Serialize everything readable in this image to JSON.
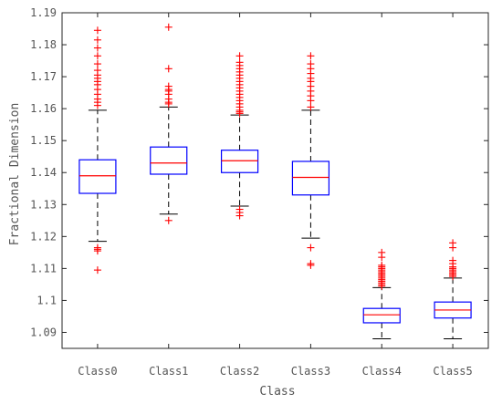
{
  "chart_data": {
    "type": "box",
    "title": "",
    "xlabel": "Class",
    "ylabel": "Fractional Dimension",
    "categories": [
      "Class0",
      "Class1",
      "Class2",
      "Class3",
      "Class4",
      "Class5"
    ],
    "ylim": [
      1.085,
      1.19
    ],
    "yticks": [
      1.09,
      1.1,
      1.11,
      1.12,
      1.13,
      1.14,
      1.15,
      1.16,
      1.17,
      1.18,
      1.19
    ],
    "ytick_labels": [
      "1.09",
      "1.1",
      "1.11",
      "1.12",
      "1.13",
      "1.14",
      "1.15",
      "1.16",
      "1.17",
      "1.18",
      "1.19"
    ],
    "grid": false,
    "colors": {
      "box": "#0000ff",
      "median": "#ff0000",
      "whisker": "#000000",
      "outlier": "#ff0000"
    },
    "boxes": [
      {
        "name": "Class0",
        "whisker_low": 1.1185,
        "q1": 1.1335,
        "median": 1.139,
        "q3": 1.144,
        "whisker_high": 1.1595,
        "outliers": [
          1.1095,
          1.1155,
          1.116,
          1.1165,
          1.161,
          1.162,
          1.163,
          1.1645,
          1.166,
          1.1675,
          1.1685,
          1.1695,
          1.1705,
          1.172,
          1.174,
          1.1765,
          1.179,
          1.1815,
          1.1845
        ]
      },
      {
        "name": "Class1",
        "whisker_low": 1.127,
        "q1": 1.1395,
        "median": 1.143,
        "q3": 1.148,
        "whisker_high": 1.1605,
        "outliers": [
          1.125,
          1.1615,
          1.162,
          1.163,
          1.1645,
          1.1655,
          1.166,
          1.167,
          1.1725,
          1.1855
        ]
      },
      {
        "name": "Class2",
        "whisker_low": 1.1295,
        "q1": 1.14,
        "median": 1.1437,
        "q3": 1.147,
        "whisker_high": 1.158,
        "outliers": [
          1.1265,
          1.1275,
          1.1285,
          1.1585,
          1.159,
          1.1595,
          1.1605,
          1.1615,
          1.1625,
          1.1635,
          1.1645,
          1.1655,
          1.1665,
          1.1675,
          1.1685,
          1.1695,
          1.1705,
          1.1715,
          1.1725,
          1.1735,
          1.1745,
          1.1765
        ]
      },
      {
        "name": "Class3",
        "whisker_low": 1.1195,
        "q1": 1.133,
        "median": 1.1385,
        "q3": 1.1435,
        "whisker_high": 1.1595,
        "outliers": [
          1.111,
          1.1115,
          1.1165,
          1.1605,
          1.1625,
          1.164,
          1.1655,
          1.167,
          1.1685,
          1.1695,
          1.171,
          1.1725,
          1.174,
          1.1765
        ]
      },
      {
        "name": "Class4",
        "whisker_low": 1.088,
        "q1": 1.093,
        "median": 1.0955,
        "q3": 1.0975,
        "whisker_high": 1.104,
        "outliers": [
          1.1045,
          1.105,
          1.1055,
          1.106,
          1.1065,
          1.107,
          1.1075,
          1.108,
          1.1085,
          1.109,
          1.1095,
          1.11,
          1.1105,
          1.111,
          1.1135,
          1.115
        ]
      },
      {
        "name": "Class5",
        "whisker_low": 1.088,
        "q1": 1.0945,
        "median": 1.097,
        "q3": 1.0995,
        "whisker_high": 1.107,
        "outliers": [
          1.1075,
          1.108,
          1.1085,
          1.109,
          1.1095,
          1.11,
          1.1105,
          1.1115,
          1.1125,
          1.1165,
          1.118
        ]
      }
    ]
  }
}
